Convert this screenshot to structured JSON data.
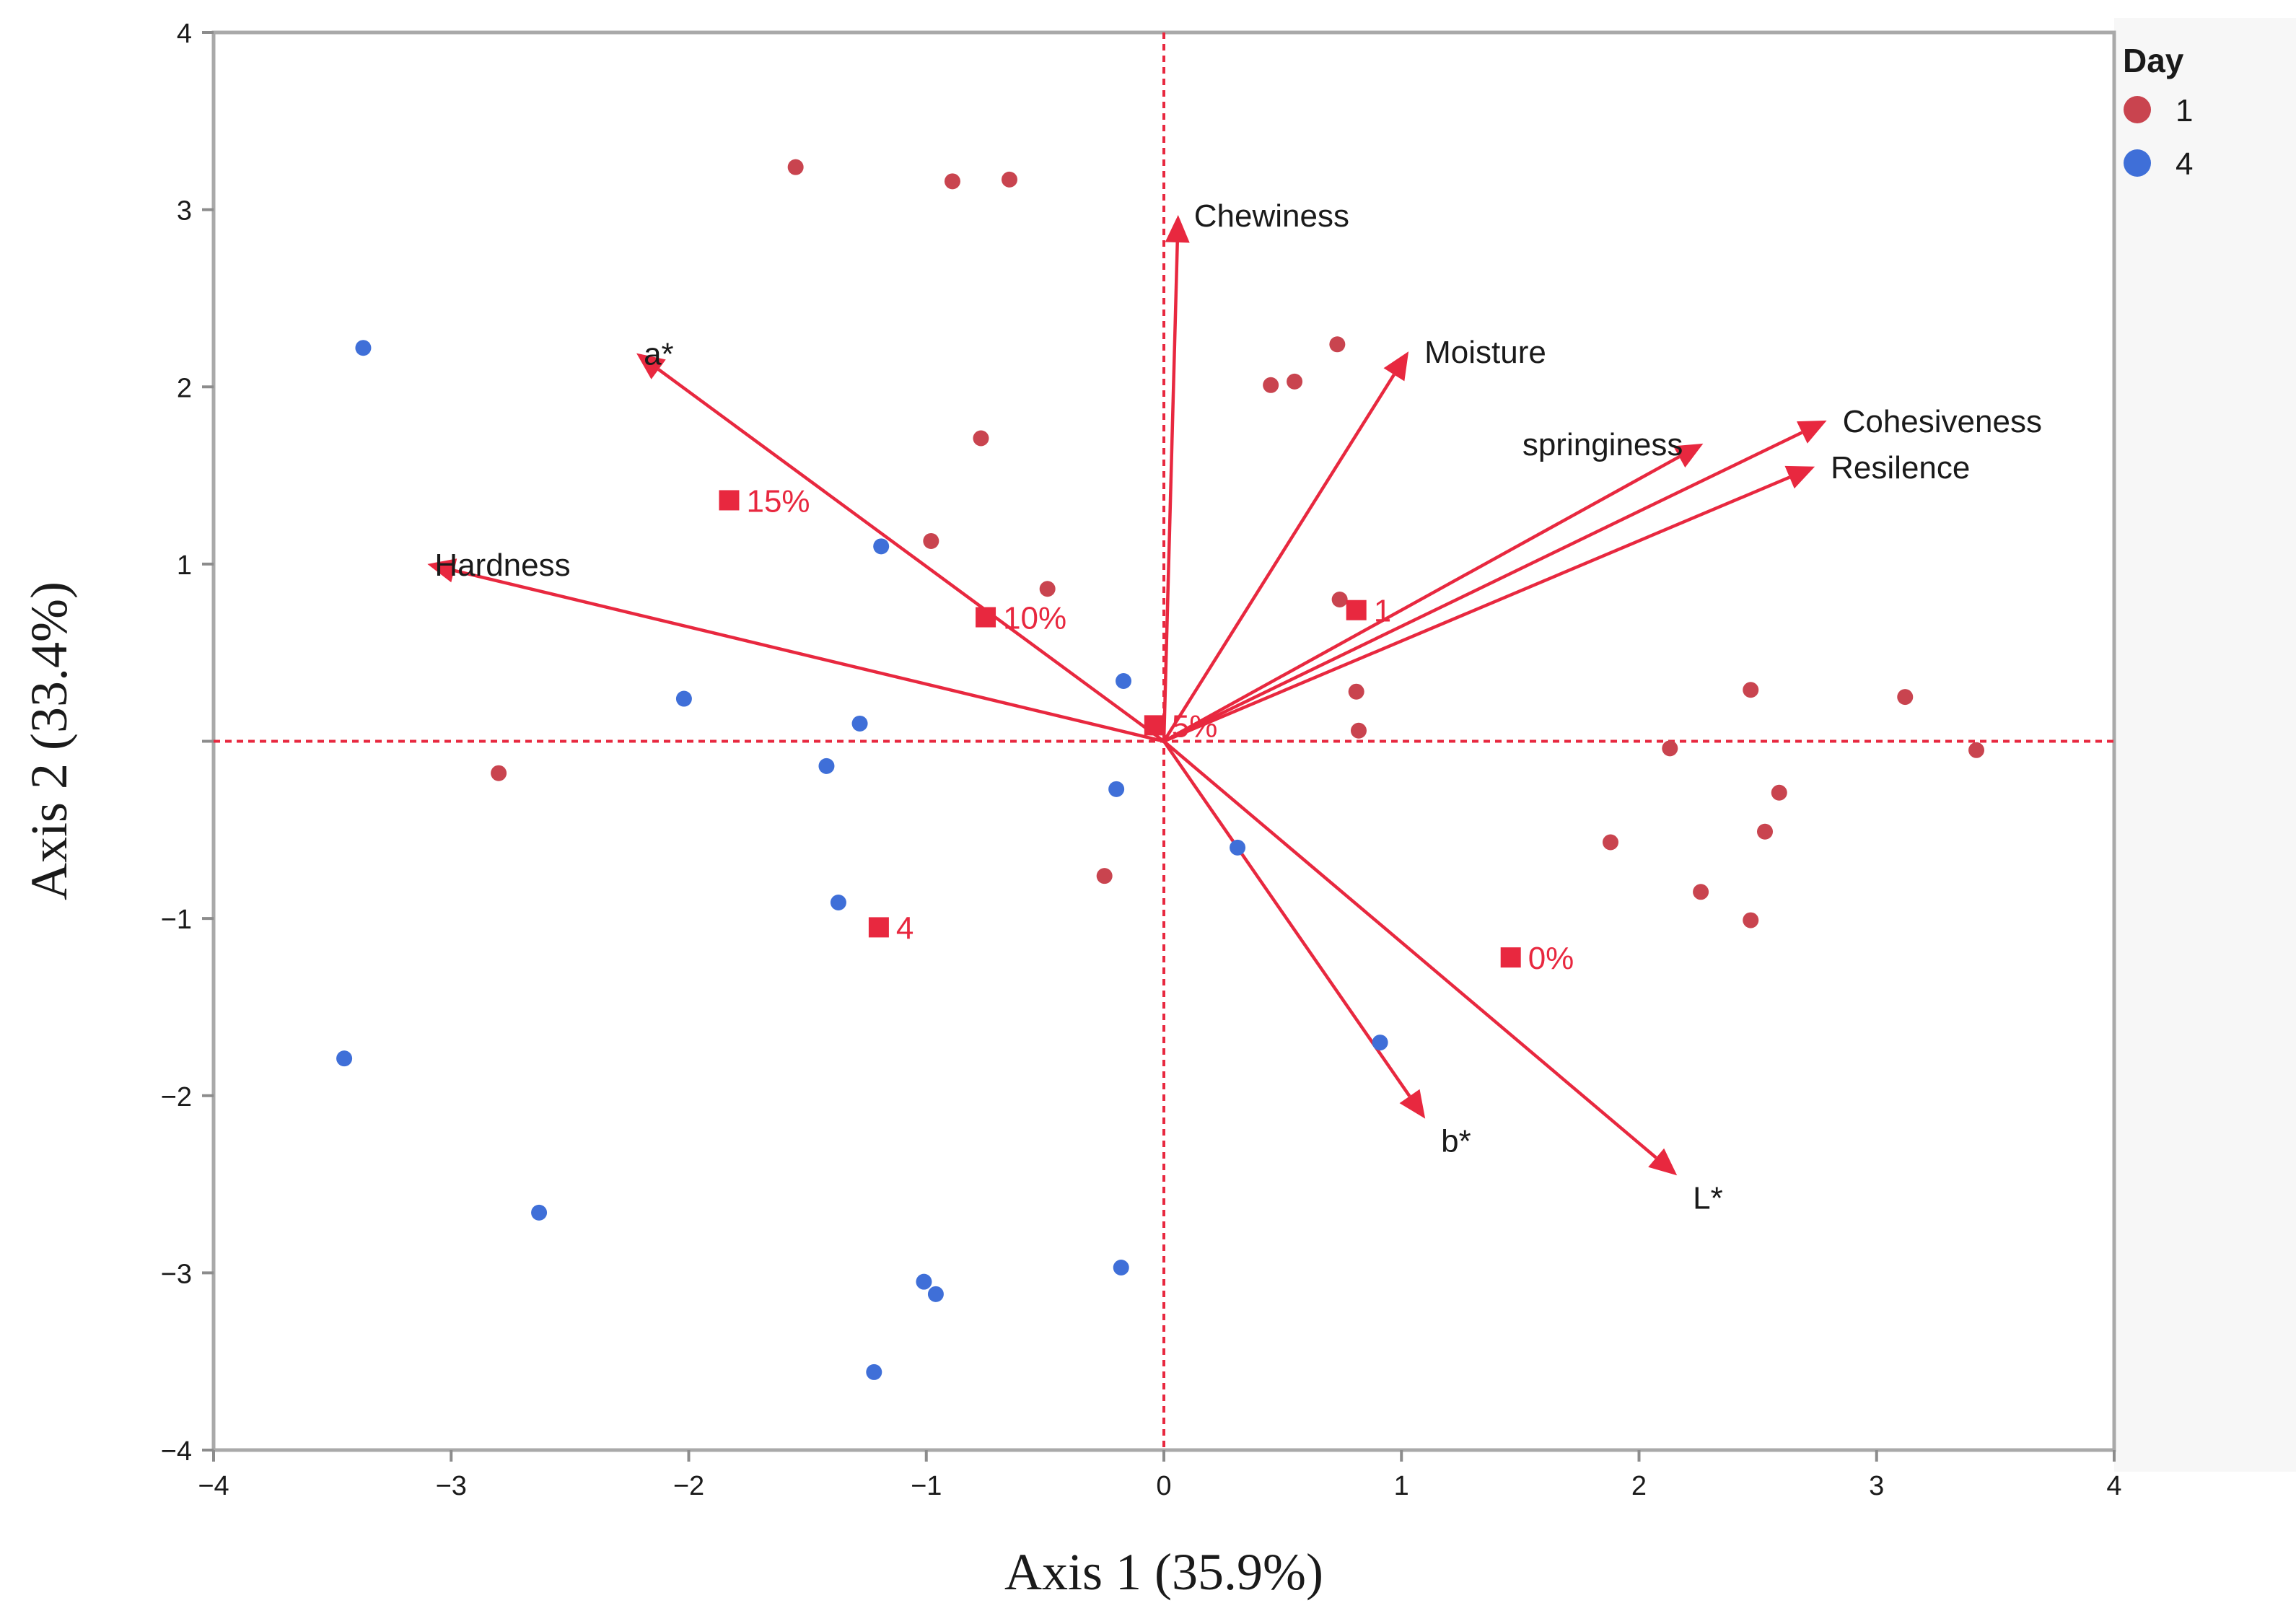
{
  "chart_data": {
    "type": "scatter",
    "subtype": "pca-biplot",
    "xlabel": "Axis 1 (35.9%)",
    "ylabel": "Axis 2 (33.4%)",
    "xlim": [
      -4,
      4
    ],
    "ylim": [
      -4,
      4
    ],
    "x_ticks": [
      -4,
      -3,
      -2,
      -1,
      0,
      1,
      2,
      3,
      4
    ],
    "y_ticks": [
      -4,
      -3,
      -2,
      -1,
      0,
      1,
      2,
      3,
      4
    ],
    "x_tick_labels": [
      "−4",
      "−3",
      "−2",
      "−1",
      "0",
      "1",
      "2",
      "3",
      "4"
    ],
    "y_tick_labels": [
      "−4",
      "−3",
      "−2",
      "−1",
      "",
      "1",
      "2",
      "3",
      "4"
    ],
    "grid": false,
    "legend": {
      "title": "Day",
      "placement": "right-top",
      "entries": [
        {
          "label": "1",
          "color": "#c9444f"
        },
        {
          "label": "4",
          "color": "#3f6fd8"
        }
      ]
    },
    "accent_color": "#e8283f",
    "series": [
      {
        "name": "1",
        "color": "#c9444f",
        "points": [
          [
            -1.55,
            3.24
          ],
          [
            -0.89,
            3.16
          ],
          [
            -0.65,
            3.17
          ],
          [
            -0.77,
            1.71
          ],
          [
            -0.98,
            1.13
          ],
          [
            -0.49,
            0.86
          ],
          [
            -2.8,
            -0.18
          ],
          [
            -0.25,
            -0.76
          ],
          [
            0.45,
            2.01
          ],
          [
            0.55,
            2.03
          ],
          [
            0.73,
            2.24
          ],
          [
            0.74,
            0.8
          ],
          [
            0.81,
            0.28
          ],
          [
            0.82,
            0.06
          ],
          [
            2.13,
            -0.04
          ],
          [
            2.47,
            0.29
          ],
          [
            3.12,
            0.25
          ],
          [
            3.42,
            -0.05
          ],
          [
            2.59,
            -0.29
          ],
          [
            2.53,
            -0.51
          ],
          [
            1.88,
            -0.57
          ],
          [
            2.26,
            -0.85
          ],
          [
            2.47,
            -1.01
          ]
        ]
      },
      {
        "name": "4",
        "color": "#3f6fd8",
        "points": [
          [
            -3.37,
            2.22
          ],
          [
            -1.19,
            1.1
          ],
          [
            -2.02,
            0.24
          ],
          [
            -1.28,
            0.1
          ],
          [
            -1.42,
            -0.14
          ],
          [
            -1.37,
            -0.91
          ],
          [
            -0.17,
            0.34
          ],
          [
            -0.2,
            -0.27
          ],
          [
            0.31,
            -0.6
          ],
          [
            0.91,
            -1.7
          ],
          [
            -3.45,
            -1.79
          ],
          [
            -2.63,
            -2.66
          ],
          [
            -1.01,
            -3.05
          ],
          [
            -0.96,
            -3.12
          ],
          [
            -0.18,
            -2.97
          ],
          [
            -1.22,
            -3.56
          ]
        ]
      }
    ],
    "vectors": [
      {
        "label": "Chewiness",
        "x": 0.06,
        "y": 2.97
      },
      {
        "label": "Moisture",
        "x": 1.03,
        "y": 2.2
      },
      {
        "label": "a*",
        "x": -2.22,
        "y": 2.19
      },
      {
        "label": "Hardness",
        "x": -3.1,
        "y": 1.0
      },
      {
        "label": "springiness",
        "x": 2.27,
        "y": 1.68
      },
      {
        "label": "Cohesiveness",
        "x": 2.79,
        "y": 1.81
      },
      {
        "label": "Resilence",
        "x": 2.74,
        "y": 1.55
      },
      {
        "label": "b*",
        "x": 1.1,
        "y": -2.13
      },
      {
        "label": "L*",
        "x": 2.16,
        "y": -2.45
      }
    ],
    "supplementary_points": [
      {
        "label": "15%",
        "x": -1.83,
        "y": 1.36
      },
      {
        "label": "10%",
        "x": -0.75,
        "y": 0.7
      },
      {
        "label": "5%",
        "x": -0.04,
        "y": 0.09
      },
      {
        "label": "1",
        "x": 0.81,
        "y": 0.74
      },
      {
        "label": "0%",
        "x": 1.46,
        "y": -1.22
      },
      {
        "label": "4",
        "x": -1.2,
        "y": -1.05
      }
    ]
  }
}
